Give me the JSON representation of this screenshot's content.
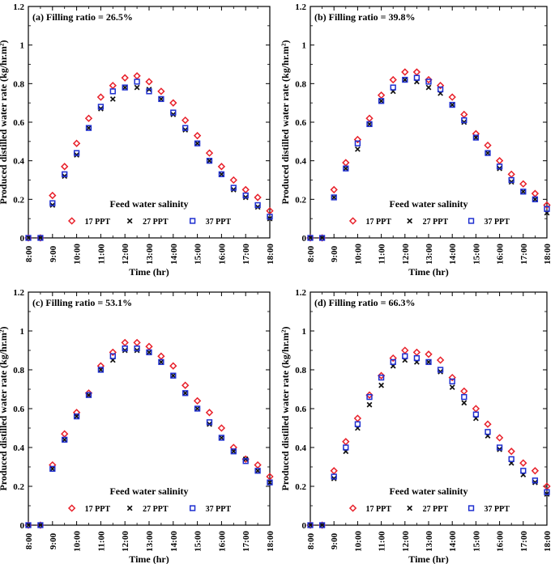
{
  "chart_data": [
    {
      "type": "scatter",
      "title": "(a) Filling ratio = 26.5%",
      "xlabel": "Time (hr)",
      "ylabel": "Produced distilled water rate (kg/hr.m²)",
      "ylim": [
        0,
        1.2
      ],
      "yticks": [
        "0",
        "0.2",
        "0.4",
        "0.6",
        "0.8",
        "1",
        "1.2"
      ],
      "xticks": [
        "8:00",
        "9:00",
        "10:00",
        "11:00",
        "12:00",
        "13:00",
        "14:00",
        "15:00",
        "16:00",
        "17:00",
        "18:00"
      ],
      "legend_title": "Feed water salinity",
      "x": [
        8.0,
        8.5,
        9.0,
        9.5,
        10.0,
        10.5,
        11.0,
        11.5,
        12.0,
        12.5,
        13.0,
        13.5,
        14.0,
        14.5,
        15.0,
        15.5,
        16.0,
        16.5,
        17.0,
        17.5,
        18.0
      ],
      "series": [
        {
          "name": "17 PPT",
          "marker": "diamond",
          "color": "#e8202a",
          "values": [
            0,
            0,
            0.22,
            0.37,
            0.49,
            0.62,
            0.73,
            0.79,
            0.83,
            0.84,
            0.81,
            0.76,
            0.7,
            0.61,
            0.53,
            0.44,
            0.37,
            0.3,
            0.25,
            0.21,
            0.14
          ]
        },
        {
          "name": "27 PPT",
          "marker": "x",
          "color": "#111111",
          "values": [
            0,
            0,
            0.17,
            0.32,
            0.43,
            0.57,
            0.67,
            0.72,
            0.78,
            0.78,
            0.77,
            0.72,
            0.64,
            0.56,
            0.49,
            0.4,
            0.33,
            0.25,
            0.21,
            0.16,
            0.1
          ]
        },
        {
          "name": "37 PPT",
          "marker": "square",
          "color": "#1e2fd0",
          "values": [
            0,
            0,
            0.18,
            0.33,
            0.44,
            0.57,
            0.68,
            0.76,
            0.78,
            0.81,
            0.76,
            0.72,
            0.65,
            0.57,
            0.49,
            0.4,
            0.33,
            0.26,
            0.22,
            0.17,
            0.11
          ]
        }
      ]
    },
    {
      "type": "scatter",
      "title": "(b) Filling ratio = 39.8%",
      "xlabel": "Time (hr)",
      "ylabel": "Produced distilled water rate (kg/hr.m²)",
      "ylim": [
        0,
        1.2
      ],
      "yticks": [
        "0",
        "0.2",
        "0.4",
        "0.6",
        "0.8",
        "1",
        "1.2"
      ],
      "xticks": [
        "8:00",
        "9:00",
        "10:00",
        "11:00",
        "12:00",
        "13:00",
        "14:00",
        "15:00",
        "16:00",
        "17:00",
        "18:00"
      ],
      "legend_title": "Feed water salinity",
      "x": [
        8.0,
        8.5,
        9.0,
        9.5,
        10.0,
        10.5,
        11.0,
        11.5,
        12.0,
        12.5,
        13.0,
        13.5,
        14.0,
        14.5,
        15.0,
        15.5,
        16.0,
        16.5,
        17.0,
        17.5,
        18.0
      ],
      "series": [
        {
          "name": "17 PPT",
          "marker": "diamond",
          "color": "#e8202a",
          "values": [
            0,
            0,
            0.25,
            0.39,
            0.51,
            0.62,
            0.74,
            0.82,
            0.86,
            0.86,
            0.82,
            0.79,
            0.73,
            0.64,
            0.54,
            0.48,
            0.4,
            0.33,
            0.28,
            0.23,
            0.17
          ]
        },
        {
          "name": "27 PPT",
          "marker": "x",
          "color": "#111111",
          "values": [
            0,
            0,
            0.21,
            0.36,
            0.46,
            0.59,
            0.71,
            0.76,
            0.82,
            0.81,
            0.78,
            0.75,
            0.69,
            0.6,
            0.52,
            0.44,
            0.36,
            0.29,
            0.24,
            0.2,
            0.13
          ]
        },
        {
          "name": "37 PPT",
          "marker": "square",
          "color": "#1e2fd0",
          "values": [
            0,
            0,
            0.21,
            0.36,
            0.49,
            0.59,
            0.71,
            0.78,
            0.82,
            0.83,
            0.81,
            0.77,
            0.69,
            0.61,
            0.52,
            0.44,
            0.37,
            0.3,
            0.24,
            0.2,
            0.15
          ]
        }
      ]
    },
    {
      "type": "scatter",
      "title": "(c) Filling ratio = 53.1%",
      "xlabel": "Time (hr)",
      "ylabel": "Produced distilled water rate (kg/hr.m²)",
      "ylim": [
        0,
        1.2
      ],
      "yticks": [
        "0",
        "0.2",
        "0.4",
        "0.6",
        "0.8",
        "1",
        "1.2"
      ],
      "xticks": [
        "8:00",
        "9:00",
        "10:00",
        "11:00",
        "12:00",
        "13:00",
        "14:00",
        "15:00",
        "16:00",
        "17:00",
        "18:00"
      ],
      "legend_title": "Feed water salinity",
      "x": [
        8.0,
        8.5,
        9.0,
        9.5,
        10.0,
        10.5,
        11.0,
        11.5,
        12.0,
        12.5,
        13.0,
        13.5,
        14.0,
        14.5,
        15.0,
        15.5,
        16.0,
        16.5,
        17.0,
        17.5,
        18.0
      ],
      "series": [
        {
          "name": "17 PPT",
          "marker": "diamond",
          "color": "#e8202a",
          "values": [
            0,
            0,
            0.31,
            0.47,
            0.58,
            0.68,
            0.82,
            0.89,
            0.94,
            0.94,
            0.92,
            0.87,
            0.82,
            0.72,
            0.64,
            0.58,
            0.5,
            0.4,
            0.34,
            0.31,
            0.25
          ]
        },
        {
          "name": "27 PPT",
          "marker": "x",
          "color": "#111111",
          "values": [
            0,
            0,
            0.29,
            0.44,
            0.56,
            0.67,
            0.8,
            0.85,
            0.9,
            0.9,
            0.89,
            0.84,
            0.77,
            0.68,
            0.6,
            0.52,
            0.45,
            0.38,
            0.34,
            0.28,
            0.22
          ]
        },
        {
          "name": "37 PPT",
          "marker": "square",
          "color": "#1e2fd0",
          "values": [
            0,
            0,
            0.29,
            0.44,
            0.56,
            0.67,
            0.8,
            0.87,
            0.91,
            0.91,
            0.89,
            0.84,
            0.77,
            0.68,
            0.6,
            0.53,
            0.45,
            0.38,
            0.33,
            0.28,
            0.22
          ]
        }
      ]
    },
    {
      "type": "scatter",
      "title": "(d) Filling ratio = 66.3%",
      "xlabel": "Time (hr)",
      "ylabel": "Produced distilled water rate (kg/hr.m²)",
      "ylim": [
        0,
        1.2
      ],
      "yticks": [
        "0",
        "0.2",
        "0.4",
        "0.6",
        "0.8",
        "1",
        "1.2"
      ],
      "xticks": [
        "8:00",
        "9:00",
        "10:00",
        "11:00",
        "12:00",
        "13:00",
        "14:00",
        "15:00",
        "16:00",
        "17:00",
        "18:00"
      ],
      "legend_title": "Feed water salinity",
      "x": [
        8.0,
        8.5,
        9.0,
        9.5,
        10.0,
        10.5,
        11.0,
        11.5,
        12.0,
        12.5,
        13.0,
        13.5,
        14.0,
        14.5,
        15.0,
        15.5,
        16.0,
        16.5,
        17.0,
        17.5,
        18.0
      ],
      "series": [
        {
          "name": "17 PPT",
          "marker": "diamond",
          "color": "#e8202a",
          "values": [
            0,
            0,
            0.28,
            0.43,
            0.55,
            0.67,
            0.77,
            0.86,
            0.9,
            0.89,
            0.88,
            0.85,
            0.76,
            0.69,
            0.6,
            0.52,
            0.45,
            0.38,
            0.32,
            0.28,
            0.2
          ]
        },
        {
          "name": "27 PPT",
          "marker": "x",
          "color": "#111111",
          "values": [
            0,
            0,
            0.24,
            0.38,
            0.5,
            0.62,
            0.72,
            0.82,
            0.85,
            0.84,
            0.84,
            0.79,
            0.71,
            0.63,
            0.55,
            0.46,
            0.39,
            0.32,
            0.26,
            0.22,
            0.16
          ]
        },
        {
          "name": "37 PPT",
          "marker": "square",
          "color": "#1e2fd0",
          "values": [
            0,
            0,
            0.25,
            0.4,
            0.52,
            0.66,
            0.76,
            0.84,
            0.87,
            0.86,
            0.84,
            0.8,
            0.74,
            0.66,
            0.57,
            0.48,
            0.4,
            0.34,
            0.28,
            0.23,
            0.17
          ]
        }
      ]
    }
  ]
}
